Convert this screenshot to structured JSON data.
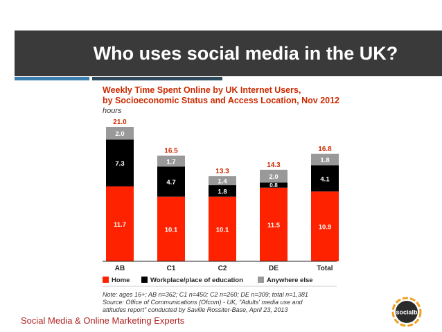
{
  "slide": {
    "title": "Who uses social media in the UK?",
    "footer": "Social Media & Online Marketing Experts",
    "logo_text": "socialb"
  },
  "colors": {
    "title_bar": "#3a3a3a",
    "home": "#ff2200",
    "workplace": "#000000",
    "anywhere": "#999999",
    "footer": "#b22222"
  },
  "chart_data": {
    "type": "bar",
    "stacked": true,
    "title": "Weekly Time Spent Online by UK Internet Users, by Socioeconomic Status and Access Location, Nov 2012",
    "subtitle": "hours",
    "categories": [
      "AB",
      "C1",
      "C2",
      "DE",
      "Total"
    ],
    "totals": [
      "21.0",
      "16.5",
      "13.3",
      "14.3",
      "16.8"
    ],
    "series": [
      {
        "name": "Home",
        "values": [
          11.7,
          10.1,
          10.1,
          11.5,
          10.9
        ]
      },
      {
        "name": "Workplace/place of education",
        "values": [
          7.3,
          4.7,
          1.8,
          0.8,
          4.1
        ]
      },
      {
        "name": "Anywhere else",
        "values": [
          2.0,
          1.7,
          1.4,
          2.0,
          1.8
        ]
      }
    ],
    "ylim": [
      0,
      21
    ],
    "legend_position": "bottom",
    "notes": [
      "Note: ages 16+; AB n=362; C1 n=450; C2 n=260; DE n=309; total n=1,381",
      "Source: Office of Communications (Ofcom) - UK, \"Adults' media use and",
      "attitudes report\" conducted by Saville Rossiter-Base, April 23, 2013"
    ]
  }
}
